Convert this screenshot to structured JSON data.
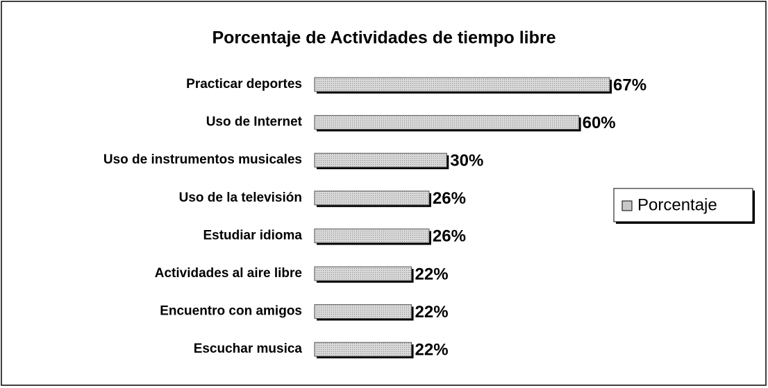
{
  "chart_data": {
    "type": "bar",
    "orientation": "horizontal",
    "title": "Porcentaje de Actividades de tiempo libre",
    "categories": [
      "Practicar deportes",
      "Uso de Internet",
      "Uso de instrumentos musicales",
      "Uso de la televisión",
      "Estudiar idioma",
      "Actividades al aire libre",
      "Encuentro con amigos",
      "Escuchar musica"
    ],
    "series": [
      {
        "name": "Porcentaje",
        "color": "#c8c8c8",
        "values": [
          67,
          60,
          30,
          26,
          26,
          22,
          22,
          22
        ],
        "value_labels": [
          "67%",
          "60%",
          "30%",
          "26%",
          "26%",
          "22%",
          "22%",
          "22%"
        ]
      }
    ],
    "legend": "right"
  }
}
